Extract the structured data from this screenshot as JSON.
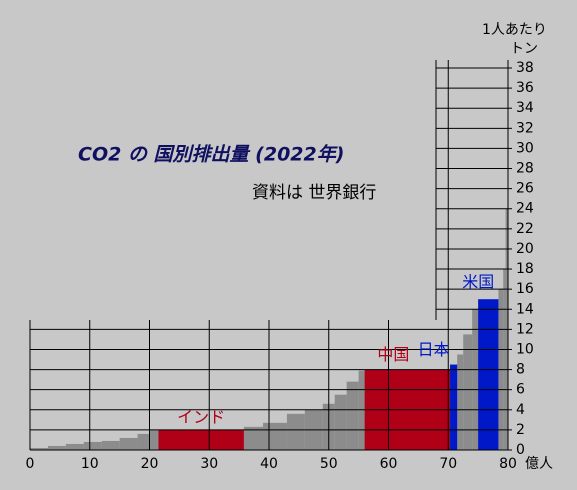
{
  "chart_data": {
    "type": "mekko",
    "title": "CO2 の 国別排出量 (2022年)",
    "subtitle": "資料は 世界銀行",
    "y_label": [
      "1人あたり",
      "トン"
    ],
    "x_label": "億人",
    "xlim": [
      0,
      80
    ],
    "xticks": [
      0,
      10,
      20,
      30,
      40,
      50,
      60,
      70,
      80
    ],
    "ylim": [
      0,
      38
    ],
    "yticks": [
      0,
      2,
      4,
      6,
      8,
      10,
      12,
      14,
      16,
      18,
      20,
      22,
      24,
      26,
      28,
      30,
      32,
      34,
      36,
      38
    ],
    "grid": true,
    "series": [
      {
        "color": "#8c8c8c",
        "bins": [
          0,
          3,
          6,
          9,
          12,
          15,
          18,
          20,
          21.5,
          35.8,
          39,
          43,
          46,
          49,
          51,
          53,
          55,
          56,
          70.3,
          71.5,
          72.5,
          74,
          75,
          78.4,
          79.2,
          79.6,
          80
        ],
        "values": [
          0.2,
          0.4,
          0.6,
          0.8,
          0.9,
          1.2,
          1.6,
          2.0,
          null,
          2.3,
          2.7,
          3.6,
          4.0,
          4.6,
          5.5,
          6.8,
          7.9,
          null,
          null,
          9.5,
          11.5,
          14,
          null,
          16,
          18,
          24
        ]
      },
      {
        "name": "インド",
        "color": "#b00018",
        "bins": [
          21.5,
          35.8
        ],
        "values": [
          2.0
        ]
      },
      {
        "name": "中国",
        "color": "#b00018",
        "bins": [
          56,
          70.3
        ],
        "values": [
          8.0
        ]
      },
      {
        "name": "日本",
        "color": "#0018c8",
        "bins": [
          70.3,
          71.5
        ],
        "values": [
          8.5
        ]
      },
      {
        "name": "米国",
        "color": "#0018c8",
        "bins": [
          75,
          78.4
        ],
        "values": [
          15.0
        ]
      }
    ]
  }
}
